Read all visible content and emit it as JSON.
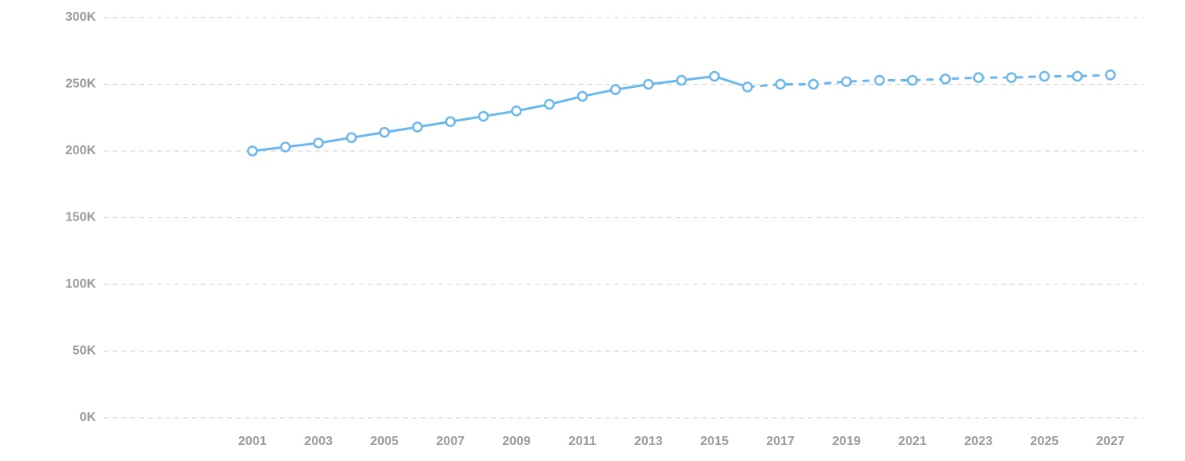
{
  "chart_data": {
    "type": "line",
    "x": [
      2001,
      2002,
      2003,
      2004,
      2005,
      2006,
      2007,
      2008,
      2009,
      2010,
      2011,
      2012,
      2013,
      2014,
      2015,
      2016,
      2017,
      2018,
      2019,
      2020,
      2021,
      2022,
      2023,
      2024,
      2025,
      2026,
      2027
    ],
    "series": [
      {
        "color": "#6cb8ec",
        "values": [
          200000,
          203000,
          206000,
          210000,
          214000,
          218000,
          222000,
          226000,
          230000,
          235000,
          241000,
          246000,
          250000,
          253000,
          256000,
          248000,
          250000,
          250000,
          252000,
          253000,
          253000,
          254000,
          255000,
          255000,
          256000,
          256000,
          257000
        ]
      }
    ],
    "forecast_start": 2016,
    "xlim": [
      1996.5,
      2028
    ],
    "xticks": [
      2001,
      2003,
      2005,
      2007,
      2009,
      2011,
      2013,
      2015,
      2017,
      2019,
      2021,
      2023,
      2025,
      2027
    ],
    "ylim": [
      0,
      300000
    ],
    "yticks": [
      {
        "value": 0,
        "label": "0K"
      },
      {
        "value": 50000,
        "label": "50K"
      },
      {
        "value": 100000,
        "label": "100K"
      },
      {
        "value": 150000,
        "label": "150K"
      },
      {
        "value": 200000,
        "label": "200K"
      },
      {
        "value": 250000,
        "label": "250K"
      },
      {
        "value": 300000,
        "label": "300K"
      }
    ],
    "grid": true
  }
}
